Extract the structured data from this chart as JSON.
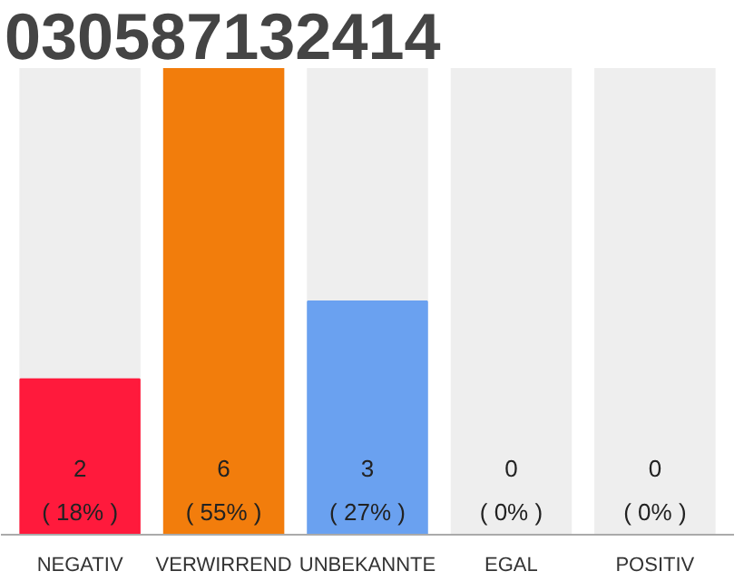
{
  "chart_data": {
    "type": "bar",
    "title": "030587132414",
    "categories": [
      "NEGATIV",
      "VERWIRREND",
      "UNBEKANNTE",
      "EGAL",
      "POSITIV"
    ],
    "values": [
      2,
      6,
      3,
      0,
      0
    ],
    "colors": [
      "#ff1a3c",
      "#f27d0c",
      "#6aa1f0",
      "#cccccc",
      "#cccccc"
    ],
    "value_labels": [
      "2\n( 18% )",
      "6\n( 55% )",
      "3\n( 27% )",
      "0\n( 0% )",
      "0\n( 0% )"
    ],
    "ylim": [
      0,
      6
    ],
    "tick_labels": "x",
    "grid": false
  }
}
